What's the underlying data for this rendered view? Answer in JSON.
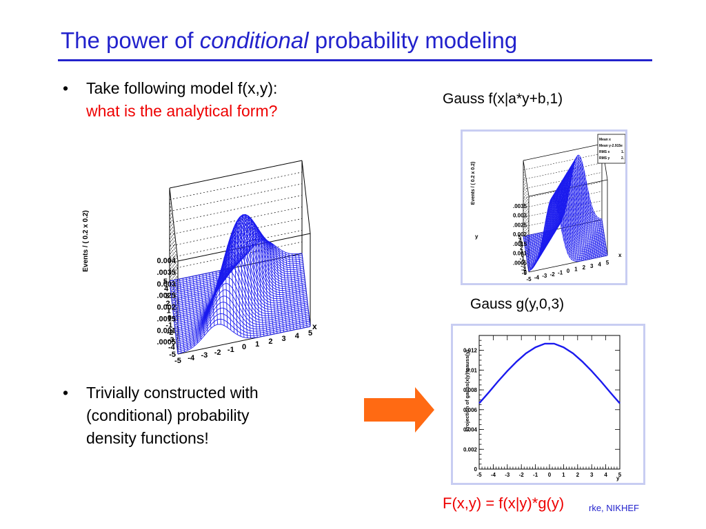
{
  "title": {
    "prefix": "The power of ",
    "italic": "conditional",
    "suffix": " probability modeling"
  },
  "bullets": [
    {
      "marker": "•",
      "line1": "Take following model f(x,y):",
      "line2": "what is the analytical form?"
    },
    {
      "marker": "•",
      "line1": "Trivially constructed with",
      "line2": "(conditional) probability",
      "line3": "density functions!"
    }
  ],
  "plot_main": {
    "z_axis_label": "Events / ( 0.2 x 0.2)",
    "z_ticks": [
      "0.004",
      ".0035",
      "0.003",
      ".0025",
      "0.002",
      ".0015",
      "0.001",
      ".0005"
    ],
    "y_ticks": [
      "5",
      "4",
      "3",
      "2",
      "1",
      "0",
      "-1",
      "-2",
      "-3",
      "-4",
      "-5"
    ],
    "x_ticks": [
      "-5",
      "-4",
      "-3",
      "-2",
      "-1",
      "0",
      "1",
      "2",
      "3",
      "4",
      "5"
    ],
    "x_label": "x"
  },
  "plot_conditional": {
    "caption": "Gauss f(x|a*y+b,1)",
    "z_ticks": [
      ".0035",
      "0.003",
      ".0025",
      "0.002",
      ".0015",
      "0.001",
      ".0005",
      "0"
    ],
    "axis_label": "Events / ( 0.2 x 0.2)",
    "y_ticks": [
      "5",
      "4",
      "3",
      "2",
      "1",
      "0",
      "-1",
      "-2",
      "-3",
      "-4",
      "-5"
    ],
    "x_ticks": [
      "-5",
      "-4",
      "-3",
      "-2",
      "-1",
      "0",
      "1",
      "2",
      "3",
      "4",
      "5"
    ],
    "x_label": "x",
    "y_label": "y",
    "stats": [
      {
        "label": "Mean x",
        "value": ""
      },
      {
        "label": "Mean y",
        "value": "-2.915e"
      },
      {
        "label": "RMS x",
        "value": "1."
      },
      {
        "label": "RMS y",
        "value": "2."
      }
    ]
  },
  "plot_gauss": {
    "caption": "Gauss g(y,0,3)",
    "y_axis_label": "Projection of gauss(x|y)*gauss(y)",
    "x_label": "y"
  },
  "arrow": {
    "color": "#ff6a13"
  },
  "formula": "F(x,y) = f(x|y)*g(y)",
  "footer": "rke, NIKHEF",
  "chart_data": {
    "type": "line",
    "series": [
      {
        "values": [
          0.00664,
          0.00773,
          0.00884,
          0.0099,
          0.01087,
          0.01169,
          0.0123,
          0.01267,
          0.01267,
          0.0123,
          0.01169,
          0.01087,
          0.0099,
          0.00884,
          0.00773,
          0.00664
        ]
      }
    ],
    "x": [
      -5,
      -4.33,
      -3.67,
      -3,
      -2.33,
      -1.67,
      -1,
      -0.33,
      0.33,
      1,
      1.67,
      2.33,
      3,
      3.67,
      4.33,
      5
    ],
    "x_ticks": [
      "-5",
      "-4",
      "-3",
      "-2",
      "-1",
      "0",
      "1",
      "2",
      "3",
      "4",
      "5"
    ],
    "y_ticks": [
      "0",
      "0.002",
      "0.004",
      "0.006",
      "0.008",
      "0.01",
      "0.012"
    ],
    "xlim": [
      -5,
      5
    ],
    "ylim": [
      0,
      0.0135
    ],
    "xlabel": "y",
    "ylabel": "Projection of gauss(x|y)*gauss(y)",
    "grid": false
  }
}
